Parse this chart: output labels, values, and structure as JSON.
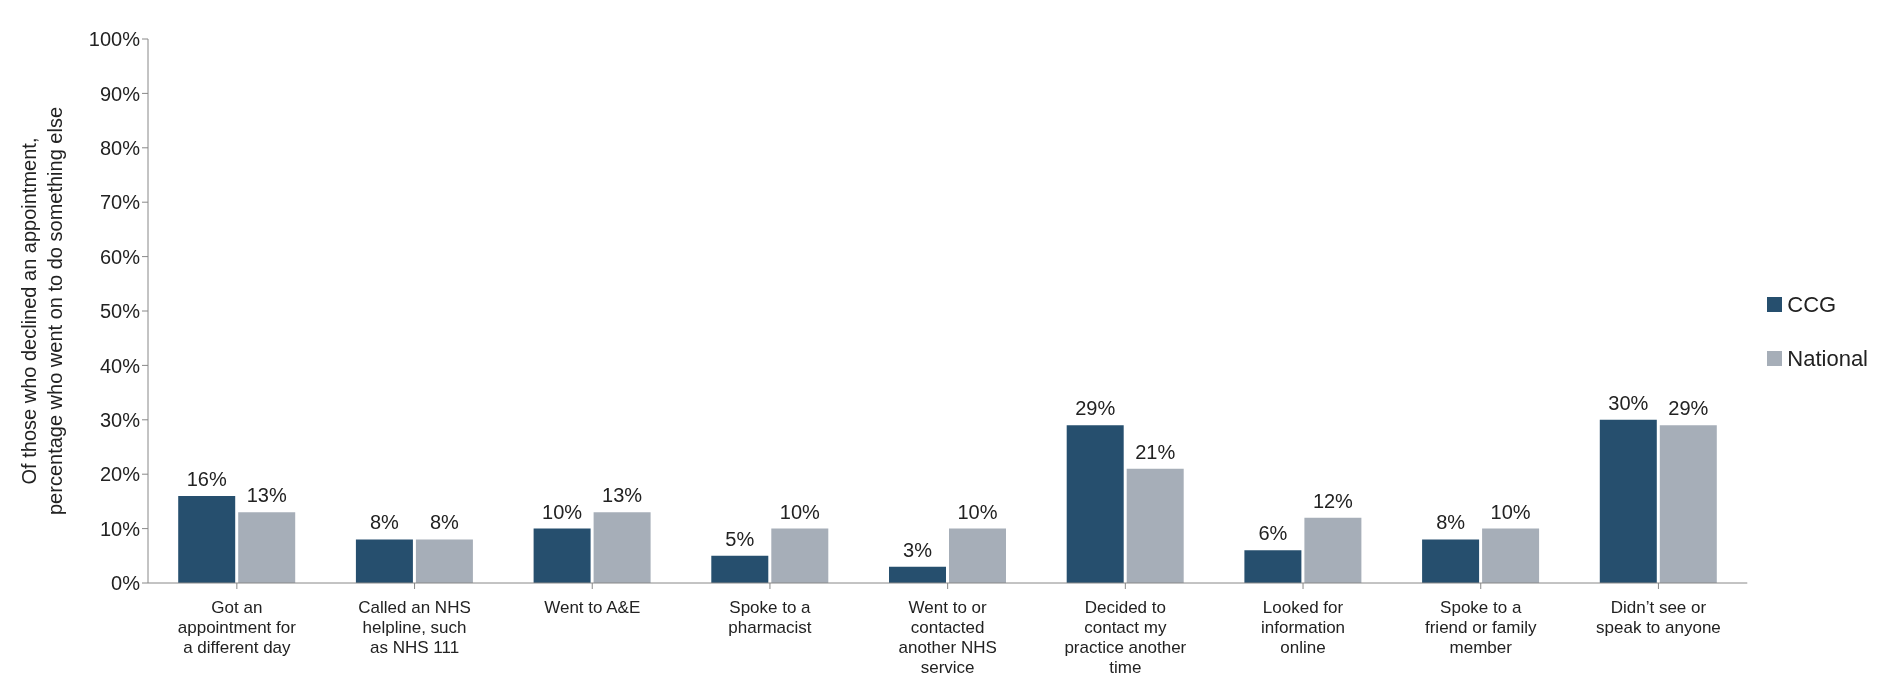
{
  "chart_data": {
    "type": "bar",
    "ylabel": "Of those who declined an appointment, percentage who went on to do something else",
    "categories": [
      "Got an appointment for a different day",
      "Called an NHS helpline, such as NHS 111",
      "Went to A&E",
      "Spoke to a pharmacist",
      "Went to or contacted another NHS service",
      "Decided to contact my practice another time",
      "Looked for information online",
      "Spoke to a friend or family member",
      "Didn’t see or speak to anyone"
    ],
    "series": [
      {
        "name": "CCG",
        "color": "#264f6e",
        "values": [
          16,
          8,
          10,
          5,
          3,
          29,
          6,
          8,
          30
        ],
        "value_labels": [
          "16%",
          "8%",
          "10%",
          "5%",
          "3%",
          "29%",
          "6%",
          "8%",
          "30%"
        ]
      },
      {
        "name": "National",
        "color": "#a6aeb8",
        "values": [
          13,
          8,
          13,
          10,
          10,
          21,
          12,
          10,
          29
        ],
        "value_labels": [
          "13%",
          "8%",
          "13%",
          "10%",
          "10%",
          "21%",
          "12%",
          "10%",
          "29%"
        ]
      }
    ],
    "ylim": [
      0,
      100
    ],
    "yticks": [
      {
        "value": 0,
        "label": "0%"
      },
      {
        "value": 10,
        "label": "10%"
      },
      {
        "value": 20,
        "label": "20%"
      },
      {
        "value": 30,
        "label": "30%"
      },
      {
        "value": 40,
        "label": "40%"
      },
      {
        "value": 50,
        "label": "50%"
      },
      {
        "value": 60,
        "label": "60%"
      },
      {
        "value": 70,
        "label": "70%"
      },
      {
        "value": 80,
        "label": "80%"
      },
      {
        "value": 90,
        "label": "90%"
      },
      {
        "value": 100,
        "label": "100%"
      }
    ],
    "grid": false,
    "legend": "right"
  }
}
